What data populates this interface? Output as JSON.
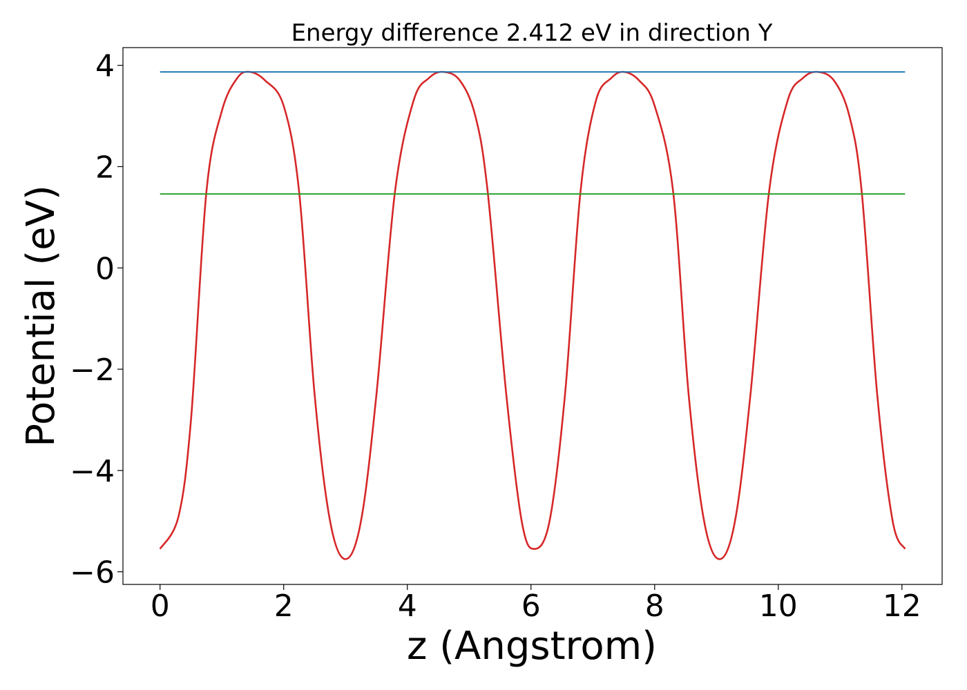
{
  "chart_data": {
    "type": "line",
    "title": "Energy difference 2.412 eV in direction Y",
    "xlabel": "z (Angstrom)",
    "ylabel": "Potential (eV)",
    "xlim": [
      -0.6,
      12.65
    ],
    "ylim": [
      -6.25,
      4.35
    ],
    "xticks": [
      0,
      2,
      4,
      6,
      8,
      10,
      12
    ],
    "xtick_labels": [
      "0",
      "2",
      "4",
      "6",
      "8",
      "10",
      "12"
    ],
    "yticks": [
      4,
      2,
      0,
      -2,
      -4,
      -6
    ],
    "ytick_labels": [
      "4",
      "2",
      "0",
      "−2",
      "−4",
      "−6"
    ],
    "grid": false,
    "series": [
      {
        "color": "#d62728",
        "x": [
          0.0,
          0.3,
          0.5,
          0.75,
          1.0,
          1.25,
          1.45,
          1.7,
          2.0,
          2.25,
          2.5,
          2.75,
          3.0,
          3.25,
          3.5,
          3.8,
          4.1,
          4.35,
          4.58,
          4.85,
          5.1,
          5.3,
          5.6,
          5.85,
          6.05,
          6.3,
          6.55,
          6.8,
          7.05,
          7.3,
          7.5,
          7.75,
          8.0,
          8.3,
          8.55,
          8.8,
          9.05,
          9.3,
          9.55,
          9.85,
          10.15,
          10.4,
          10.63,
          10.9,
          11.15,
          11.35,
          11.6,
          11.85,
          12.05
        ],
        "y": [
          -5.55,
          -4.9,
          -3.0,
          1.5,
          3.1,
          3.75,
          3.87,
          3.7,
          3.2,
          1.5,
          -2.5,
          -5.0,
          -5.75,
          -5.0,
          -2.5,
          1.5,
          3.3,
          3.75,
          3.87,
          3.7,
          3.0,
          1.5,
          -2.5,
          -5.0,
          -5.55,
          -5.0,
          -2.5,
          1.5,
          3.3,
          3.75,
          3.87,
          3.7,
          3.2,
          1.5,
          -2.5,
          -5.0,
          -5.75,
          -5.0,
          -2.5,
          1.5,
          3.3,
          3.75,
          3.87,
          3.7,
          3.0,
          1.5,
          -2.5,
          -5.0,
          -5.55
        ]
      },
      {
        "color": "#1f77b4",
        "x": [
          0.0,
          12.05
        ],
        "y": [
          3.87,
          3.87
        ]
      },
      {
        "color": "#2ca02c",
        "x": [
          0.0,
          12.05
        ],
        "y": [
          1.46,
          1.46
        ]
      }
    ]
  }
}
